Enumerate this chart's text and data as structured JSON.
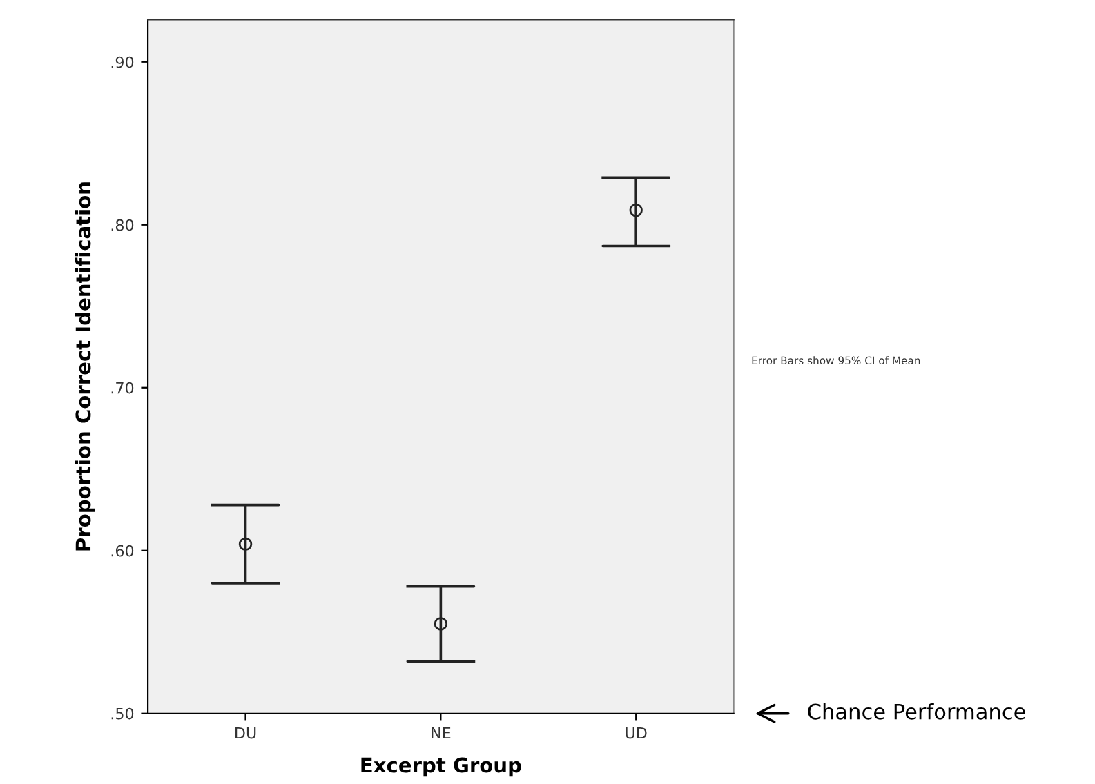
{
  "chart_data": {
    "type": "scatter",
    "xlabel": "Excerpt Group",
    "ylabel": "Proportion Correct Identification",
    "categories": [
      "DU",
      "NE",
      "UD"
    ],
    "values": [
      0.604,
      0.555,
      0.809
    ],
    "errors": [
      [
        0.58,
        0.628
      ],
      [
        0.532,
        0.578
      ],
      [
        0.787,
        0.829
      ]
    ],
    "color": "#222222",
    "marker": "circle",
    "ylim": [
      0.5,
      0.926
    ],
    "yticks": [
      {
        "value": 0.5,
        "label": ".50"
      },
      {
        "value": 0.6,
        "label": ".60"
      },
      {
        "value": 0.7,
        "label": ".70"
      },
      {
        "value": 0.8,
        "label": ".80"
      },
      {
        "value": 0.9,
        "label": ".90"
      }
    ],
    "grid": false,
    "annotations": [
      "Error Bars show 95% CI of Mean",
      "Chance Performance"
    ]
  }
}
